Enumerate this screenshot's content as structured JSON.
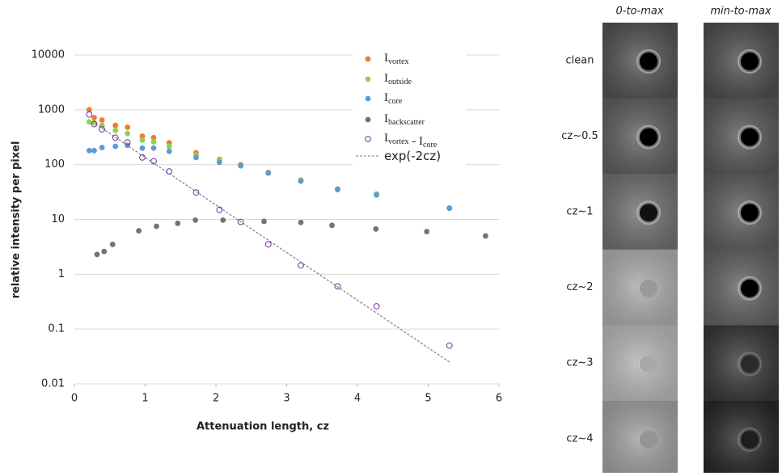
{
  "chart_data": {
    "type": "scatter",
    "xlabel": "Attenuation length, cz",
    "ylabel": "relative intensity per pixel",
    "xlim": [
      0,
      6
    ],
    "xticks": [
      0,
      1,
      2,
      3,
      4,
      5,
      6
    ],
    "ylim": [
      0.01,
      10000
    ],
    "yticks": [
      10000,
      1000,
      100,
      10,
      1,
      0.1,
      0.01
    ],
    "log_y": true,
    "grid": true,
    "legend": "upper right",
    "series": [
      {
        "name": [
          {
            "text": "I",
            "sub": "vortex"
          }
        ],
        "color": "#ed7d31",
        "marker": "filled",
        "x": [
          0.21,
          0.28,
          0.39,
          0.58,
          0.75,
          0.96,
          1.12,
          1.34,
          1.72,
          2.05,
          2.35,
          2.74,
          3.2,
          3.72,
          4.27,
          5.3
        ],
        "values": [
          1000,
          720,
          650,
          520,
          480,
          330,
          310,
          250,
          165,
          125,
          100,
          72,
          52,
          36,
          29,
          16
        ]
      },
      {
        "name": [
          {
            "text": "I",
            "sub": "outside"
          }
        ],
        "color": "#92d050",
        "marker": "filled",
        "x": [
          0.21,
          0.28,
          0.39,
          0.58,
          0.75,
          0.96,
          1.12,
          1.34,
          1.72,
          2.05,
          2.35,
          2.74,
          3.2,
          3.72,
          4.27,
          5.3
        ],
        "values": [
          600,
          580,
          520,
          420,
          370,
          280,
          260,
          215,
          150,
          120,
          97,
          71,
          51,
          36,
          29,
          16
        ]
      },
      {
        "name": [
          {
            "text": "I",
            "sub": "core"
          }
        ],
        "color": "#5b9bd5",
        "marker": "filled",
        "x": [
          0.21,
          0.28,
          0.39,
          0.58,
          0.75,
          0.96,
          1.12,
          1.34,
          1.72,
          2.05,
          2.35,
          2.74,
          3.2,
          3.72,
          4.27,
          5.3
        ],
        "values": [
          180,
          180,
          205,
          215,
          225,
          200,
          200,
          175,
          135,
          110,
          95,
          70,
          50,
          35,
          28,
          16
        ]
      },
      {
        "name": [
          {
            "text": "I",
            "sub": "backscatter"
          }
        ],
        "color": "#737373",
        "marker": "filled",
        "x": [
          0.32,
          0.42,
          0.54,
          0.91,
          1.16,
          1.46,
          1.71,
          2.1,
          2.68,
          3.2,
          3.64,
          4.26,
          4.98,
          5.81
        ],
        "values": [
          2.3,
          2.6,
          3.5,
          6.2,
          7.5,
          8.5,
          9.7,
          9.7,
          9.2,
          8.8,
          7.8,
          6.7,
          6,
          5
        ]
      },
      {
        "name": [
          {
            "text": "I",
            "sub": "vortex"
          },
          {
            "text": " - I",
            "sub": "core"
          }
        ],
        "color": "#7030a0",
        "marker": "open",
        "x": [
          0.21,
          0.28,
          0.39,
          0.58,
          0.75,
          0.96,
          1.12,
          1.34,
          1.72,
          2.05,
          2.35,
          2.74,
          3.2,
          3.72,
          4.27,
          5.3
        ],
        "values": [
          820,
          550,
          440,
          310,
          255,
          135,
          115,
          75,
          31,
          15,
          9,
          3.5,
          1.45,
          0.6,
          0.26,
          0.05
        ]
      },
      {
        "name": [
          {
            "text": "exp(-2cz)"
          }
        ],
        "color": "#7f7f7f",
        "marker": "dashed-line",
        "x": [
          0.2,
          5.3
        ],
        "values": [
          670,
          0.025
        ]
      }
    ]
  },
  "panel": {
    "columns": [
      "0-to-max",
      "min-to-max"
    ],
    "rows": [
      "clean",
      "cz~0.5",
      "cz~1",
      "cz~2",
      "cz~3",
      "cz~4"
    ]
  }
}
